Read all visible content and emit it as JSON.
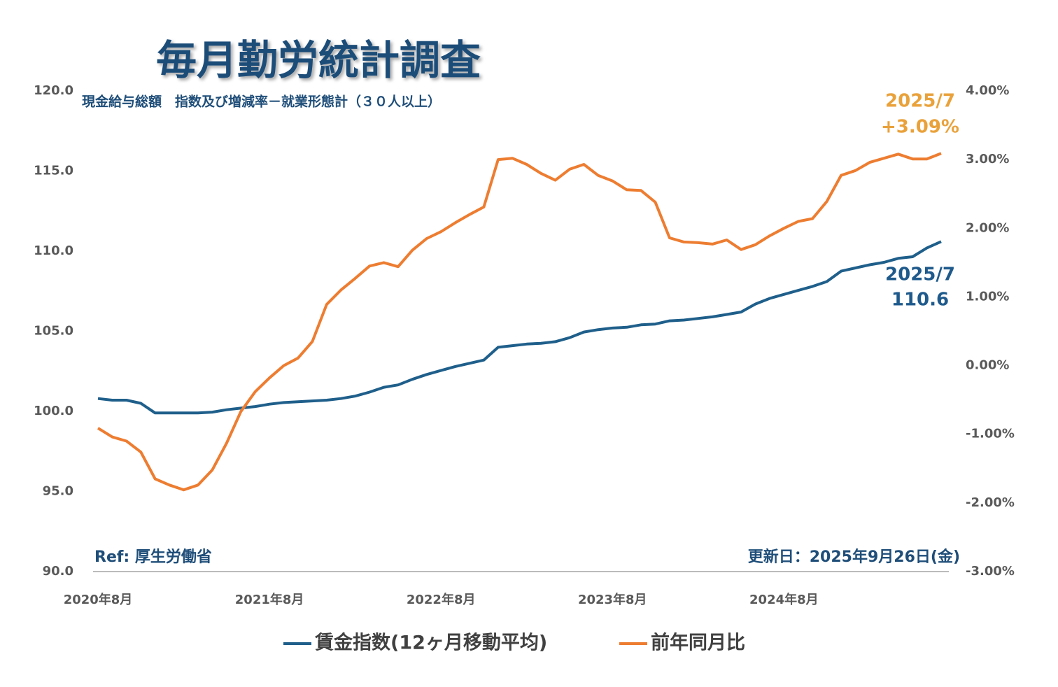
{
  "chart_data": {
    "type": "line",
    "title": "毎月勤労統計調査",
    "subtitle": "現金給与総額　指数及び増減率－就業形態計（３０人以上）",
    "source": "Ref: 厚生労働省",
    "updated": "更新日：2025年9月26日(金)",
    "categories": [
      "2020年8月",
      null,
      null,
      null,
      null,
      null,
      null,
      null,
      null,
      null,
      null,
      null,
      "2021年8月",
      null,
      null,
      null,
      null,
      null,
      null,
      null,
      null,
      null,
      null,
      null,
      "2022年8月",
      null,
      null,
      null,
      null,
      null,
      null,
      null,
      null,
      null,
      null,
      null,
      "2023年8月",
      null,
      null,
      null,
      null,
      null,
      null,
      null,
      null,
      null,
      null,
      null,
      "2024年8月",
      null,
      null,
      null,
      null,
      null,
      null,
      null,
      null,
      null,
      null,
      null
    ],
    "series": [
      {
        "name": "賃金指数(12ヶ月移動平均)",
        "color": "#1f5f8b",
        "values": [
          100.8,
          100.7,
          100.7,
          100.5,
          99.9,
          99.9,
          99.9,
          99.9,
          99.95,
          100.1,
          100.2,
          100.3,
          100.45,
          100.55,
          100.6,
          100.65,
          100.7,
          100.8,
          100.95,
          101.2,
          101.5,
          101.65,
          102.0,
          102.3,
          102.55,
          102.8,
          103.0,
          103.2,
          104.0,
          104.1,
          104.2,
          104.25,
          104.35,
          104.6,
          104.95,
          105.1,
          105.2,
          105.25,
          105.4,
          105.45,
          105.65,
          105.7,
          105.8,
          105.9,
          106.05,
          106.2,
          106.7,
          107.05,
          107.3,
          107.55,
          107.8,
          108.1,
          108.75,
          108.95,
          109.15,
          109.3,
          109.55,
          109.65,
          110.2,
          110.6
        ]
      },
      {
        "name": "前年同月比",
        "color": "#ed7d31",
        "axis": "y2",
        "values": [
          -0.91,
          -1.04,
          -1.1,
          -1.26,
          -1.65,
          -1.74,
          -1.81,
          -1.74,
          -1.52,
          -1.13,
          -0.67,
          -0.38,
          -0.18,
          0.0,
          0.11,
          0.35,
          0.89,
          1.1,
          1.27,
          1.45,
          1.5,
          1.44,
          1.68,
          1.85,
          1.95,
          2.08,
          2.2,
          2.31,
          3.0,
          3.02,
          2.93,
          2.8,
          2.7,
          2.86,
          2.93,
          2.77,
          2.69,
          2.56,
          2.55,
          2.38,
          1.86,
          1.8,
          1.79,
          1.77,
          1.83,
          1.69,
          1.76,
          1.89,
          2.0,
          2.1,
          2.14,
          2.39,
          2.77,
          2.84,
          2.96,
          3.02,
          3.08,
          3.01,
          3.01,
          3.09
        ]
      }
    ],
    "ylim": [
      90,
      120
    ],
    "yticks": [
      {
        "value": 90,
        "label": "90.0"
      },
      {
        "value": 95,
        "label": "95.0"
      },
      {
        "value": 100,
        "label": "100.0"
      },
      {
        "value": 105,
        "label": "105.0"
      },
      {
        "value": 110,
        "label": "110.0"
      },
      {
        "value": 115,
        "label": "115.0"
      },
      {
        "value": 120,
        "label": "120.0"
      }
    ],
    "y2lim": [
      -3,
      4
    ],
    "y2ticks": [
      {
        "value": -3,
        "label": "-3.00%"
      },
      {
        "value": -2,
        "label": "-2.00%"
      },
      {
        "value": -1,
        "label": "-1.00%"
      },
      {
        "value": 0,
        "label": "0.00%"
      },
      {
        "value": 1,
        "label": "1.00%"
      },
      {
        "value": 2,
        "label": "2.00%"
      },
      {
        "value": 3,
        "label": "3.00%"
      },
      {
        "value": 4,
        "label": "4.00%"
      }
    ],
    "annotations": [
      {
        "lines": [
          "2025/7",
          "+3.09%"
        ],
        "color": "#e9a23b"
      },
      {
        "lines": [
          "2025/7",
          "110.6"
        ],
        "color": "#1f5a8c"
      }
    ],
    "grid": false,
    "legend": "bottom"
  }
}
